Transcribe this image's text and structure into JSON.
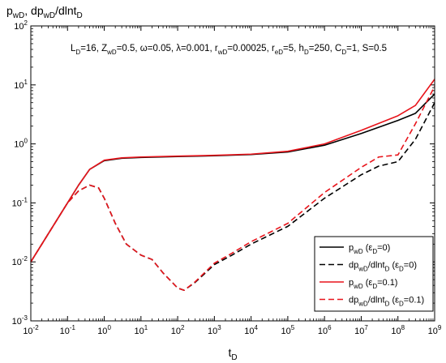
{
  "chart_data": {
    "type": "line",
    "ylabel": {
      "main": "p",
      "sub1": "wD",
      "mid": ", dp",
      "sub2": "wD",
      "tail": "/dlnt",
      "sub3": "D"
    },
    "xlabel": {
      "main": "t",
      "sub": "D"
    },
    "x_scale": "log",
    "y_scale": "log",
    "xlim": [
      0.01,
      1000000000
    ],
    "ylim": [
      0.001,
      100
    ],
    "x_tick_exponents": [
      -2,
      -1,
      0,
      1,
      2,
      3,
      4,
      5,
      6,
      7,
      8,
      9
    ],
    "y_tick_exponents": [
      -3,
      -2,
      -1,
      0,
      1,
      2
    ],
    "grid": false,
    "legend_position": "bottom-right",
    "annotation": [
      {
        "t": "L"
      },
      {
        "t": "D",
        "sub": true
      },
      {
        "t": "=16, Z"
      },
      {
        "t": "wD",
        "sub": true
      },
      {
        "t": "=0.5, ω=0.05, λ=0.001, r"
      },
      {
        "t": "wD",
        "sub": true
      },
      {
        "t": "=0.00025, r"
      },
      {
        "t": "eD",
        "sub": true
      },
      {
        "t": "=5, h"
      },
      {
        "t": "D",
        "sub": true
      },
      {
        "t": "=250, C"
      },
      {
        "t": "D",
        "sub": true
      },
      {
        "t": "=1, S=0.5"
      }
    ],
    "series": [
      {
        "name": [
          {
            "t": "p"
          },
          {
            "t": "wD",
            "sub": true
          },
          {
            "t": " (ε"
          },
          {
            "t": "D",
            "sub": true
          },
          {
            "t": "=0)"
          }
        ],
        "color": "#000000",
        "dash": "solid",
        "x": [
          0.01,
          0.03,
          0.1,
          0.2,
          0.4,
          1,
          3,
          10,
          100,
          1000,
          10000,
          100000,
          1000000,
          10000000,
          100000000,
          300000000,
          1000000000
        ],
        "y": [
          0.01,
          0.03,
          0.1,
          0.2,
          0.37,
          0.52,
          0.57,
          0.59,
          0.61,
          0.63,
          0.66,
          0.73,
          0.95,
          1.5,
          2.5,
          3.3,
          7.0
        ]
      },
      {
        "name": [
          {
            "t": "dp"
          },
          {
            "t": "wD",
            "sub": true
          },
          {
            "t": "/dlnt"
          },
          {
            "t": "D",
            "sub": true
          },
          {
            "t": " (ε"
          },
          {
            "t": "D",
            "sub": true
          },
          {
            "t": "=0)"
          }
        ],
        "color": "#000000",
        "dash": "dashed",
        "x": [
          0.01,
          0.03,
          0.1,
          0.2,
          0.4,
          0.7,
          1,
          2,
          4,
          10,
          20,
          40,
          100,
          150,
          300,
          1000,
          3000,
          10000,
          100000,
          1000000,
          10000000,
          30000000,
          100000000,
          300000000,
          1000000000
        ],
        "y": [
          0.01,
          0.03,
          0.1,
          0.16,
          0.2,
          0.18,
          0.12,
          0.045,
          0.02,
          0.013,
          0.011,
          0.0065,
          0.0036,
          0.0033,
          0.0045,
          0.009,
          0.013,
          0.02,
          0.04,
          0.12,
          0.3,
          0.42,
          0.5,
          1.2,
          5.0
        ]
      },
      {
        "name": [
          {
            "t": "p"
          },
          {
            "t": "wD",
            "sub": true
          },
          {
            "t": " (ε"
          },
          {
            "t": "D",
            "sub": true
          },
          {
            "t": "=0.1)"
          }
        ],
        "color": "#e8141b",
        "dash": "solid",
        "x": [
          0.01,
          0.03,
          0.1,
          0.2,
          0.4,
          1,
          3,
          10,
          100,
          1000,
          10000,
          100000,
          1000000,
          10000000,
          100000000,
          300000000,
          1000000000
        ],
        "y": [
          0.01,
          0.03,
          0.1,
          0.2,
          0.37,
          0.53,
          0.58,
          0.6,
          0.62,
          0.64,
          0.67,
          0.75,
          1.0,
          1.7,
          3.0,
          4.5,
          12.5
        ]
      },
      {
        "name": [
          {
            "t": "dp"
          },
          {
            "t": "wD",
            "sub": true
          },
          {
            "t": "/dlnt"
          },
          {
            "t": "D",
            "sub": true
          },
          {
            "t": " (ε"
          },
          {
            "t": "D",
            "sub": true
          },
          {
            "t": "=0.1)"
          }
        ],
        "color": "#e8141b",
        "dash": "dashed",
        "x": [
          0.01,
          0.03,
          0.1,
          0.2,
          0.4,
          0.7,
          1,
          2,
          4,
          10,
          20,
          40,
          100,
          150,
          300,
          1000,
          3000,
          10000,
          100000,
          1000000,
          10000000,
          30000000,
          100000000,
          300000000,
          1000000000
        ],
        "y": [
          0.01,
          0.03,
          0.1,
          0.16,
          0.2,
          0.18,
          0.12,
          0.045,
          0.02,
          0.013,
          0.011,
          0.0065,
          0.0036,
          0.0033,
          0.0046,
          0.0095,
          0.014,
          0.022,
          0.045,
          0.15,
          0.4,
          0.6,
          0.65,
          2.2,
          9.5
        ]
      }
    ]
  }
}
